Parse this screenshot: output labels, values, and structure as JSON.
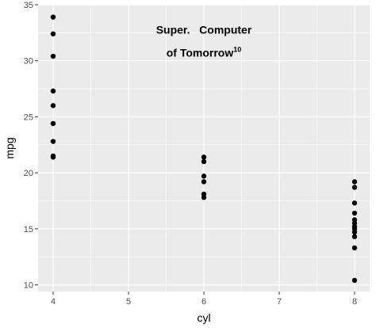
{
  "chart_data": {
    "type": "scatter",
    "x_label": "cyl",
    "y_label": "mpg",
    "x_ticks": [
      "4",
      "5",
      "6",
      "7",
      "8"
    ],
    "y_ticks": [
      "10",
      "15",
      "20",
      "25",
      "30",
      "35"
    ],
    "xlim": [
      3.8,
      8.2
    ],
    "ylim": [
      9.4,
      35.0
    ],
    "grid": true,
    "panel_background": "#ebebeb",
    "grid_color": "#ffffff",
    "point_color": "#000000",
    "annotation": {
      "line1": "Super.   Computer",
      "line2_main": "of Tomorrow",
      "line2_superscript": "10",
      "x": 6.0,
      "y": 31.5
    },
    "points": [
      {
        "x": 4,
        "y": 33.9
      },
      {
        "x": 4,
        "y": 32.4
      },
      {
        "x": 4,
        "y": 30.4
      },
      {
        "x": 4,
        "y": 27.3
      },
      {
        "x": 4,
        "y": 26.0
      },
      {
        "x": 4,
        "y": 24.4
      },
      {
        "x": 4,
        "y": 22.8
      },
      {
        "x": 4,
        "y": 21.5
      },
      {
        "x": 4,
        "y": 21.4
      },
      {
        "x": 6,
        "y": 21.4
      },
      {
        "x": 6,
        "y": 21.0
      },
      {
        "x": 6,
        "y": 19.7
      },
      {
        "x": 6,
        "y": 19.2
      },
      {
        "x": 6,
        "y": 18.1
      },
      {
        "x": 6,
        "y": 17.8
      },
      {
        "x": 8,
        "y": 19.2
      },
      {
        "x": 8,
        "y": 18.7
      },
      {
        "x": 8,
        "y": 17.3
      },
      {
        "x": 8,
        "y": 16.4
      },
      {
        "x": 8,
        "y": 15.8
      },
      {
        "x": 8,
        "y": 15.5
      },
      {
        "x": 8,
        "y": 15.2
      },
      {
        "x": 8,
        "y": 15.0
      },
      {
        "x": 8,
        "y": 14.7
      },
      {
        "x": 8,
        "y": 14.3
      },
      {
        "x": 8,
        "y": 13.3
      },
      {
        "x": 8,
        "y": 10.4
      }
    ]
  }
}
